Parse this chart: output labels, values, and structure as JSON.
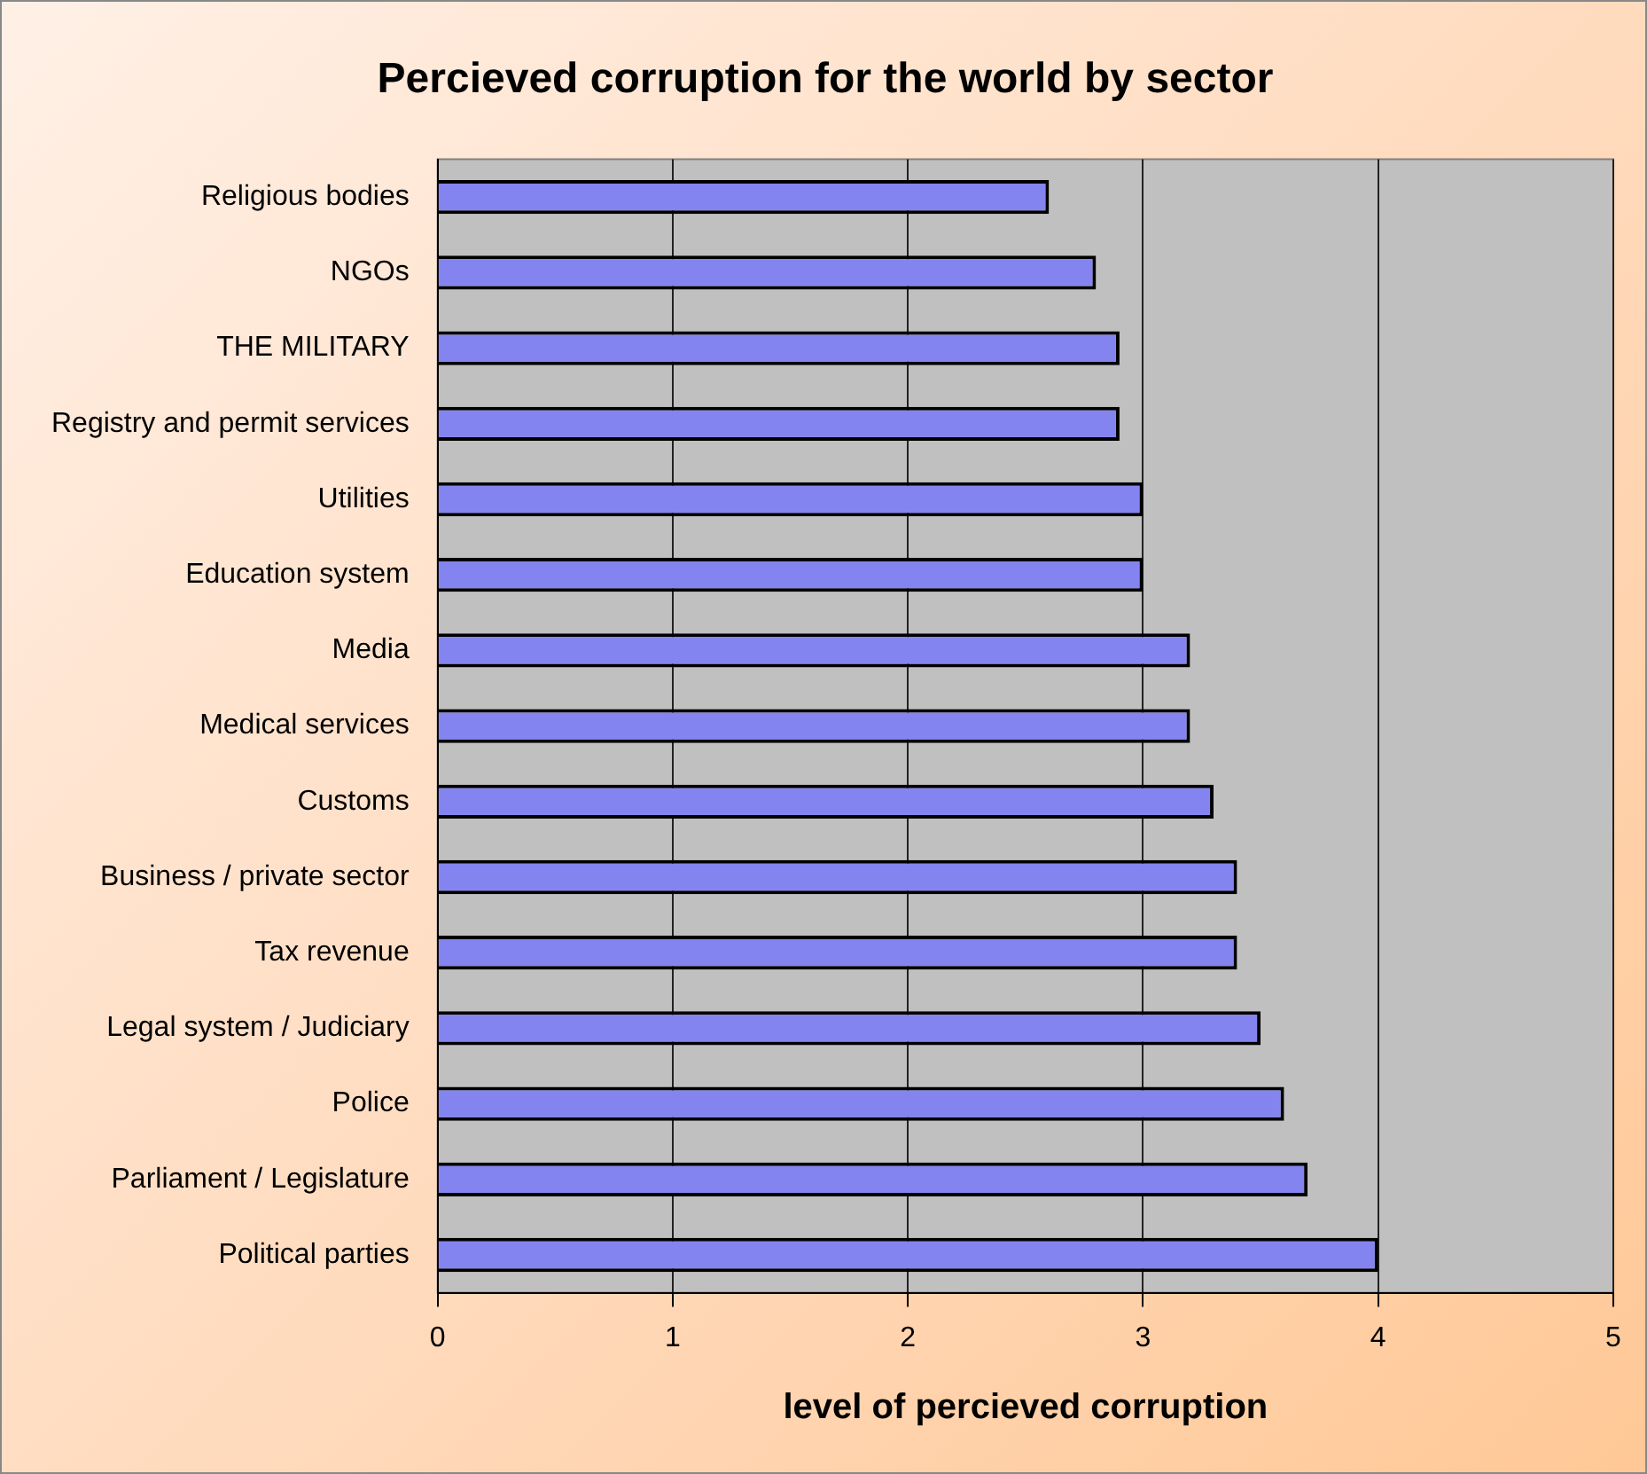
{
  "chart_data": {
    "type": "bar",
    "orientation": "horizontal",
    "title": "Percieved corruption for the world by sector",
    "xlabel": "level of percieved corruption",
    "categories": [
      "Religious bodies",
      "NGOs",
      "THE MILITARY",
      "Registry and permit services",
      "Utilities",
      "Education system",
      "Media",
      "Medical services",
      "Customs",
      "Business / private sector",
      "Tax revenue",
      "Legal system / Judiciary",
      "Police",
      "Parliament / Legislature",
      "Political parties"
    ],
    "values": [
      2.6,
      2.8,
      2.9,
      2.9,
      3.0,
      3.0,
      3.2,
      3.2,
      3.3,
      3.4,
      3.4,
      3.5,
      3.6,
      3.7,
      4.0
    ],
    "color": "#8484f0",
    "xlim": [
      0,
      5
    ],
    "xticks": [
      0,
      1,
      2,
      3,
      4,
      5
    ],
    "grid": "x",
    "legend": false
  }
}
